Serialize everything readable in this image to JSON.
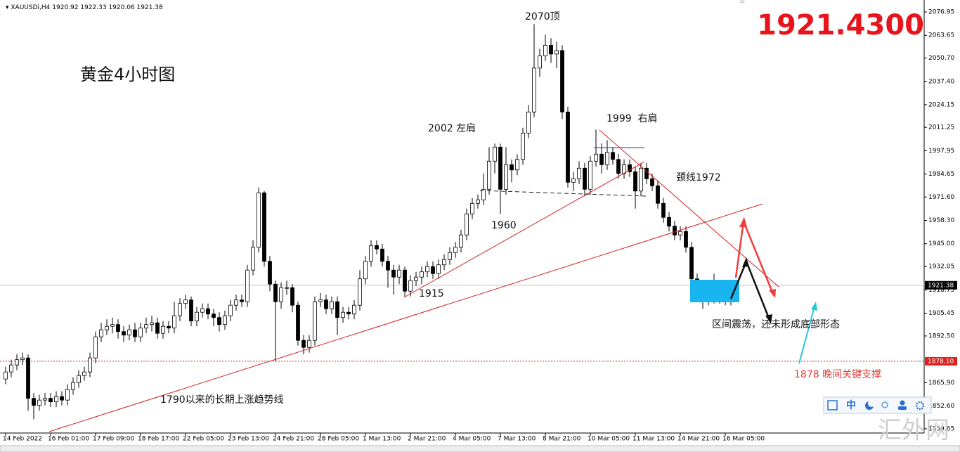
{
  "chart_data": {
    "type": "candlestick",
    "header": {
      "symbol": "XAUUSDi,H4",
      "ohlc": [
        1920.92,
        1922.33,
        1920.06,
        1921.38
      ]
    },
    "title": "黄金4小时图",
    "big_price": "1921.4300",
    "categories": [
      "14 Feb 2022",
      null,
      null,
      null,
      null,
      null,
      null,
      null,
      "16 Feb 01:00",
      null,
      null,
      null,
      null,
      null,
      null,
      null,
      "17 Feb 09:00",
      null,
      null,
      null,
      null,
      null,
      null,
      null,
      "18 Feb 17:00",
      null,
      null,
      null,
      null,
      null,
      null,
      null,
      "22 Feb 05:00",
      null,
      null,
      null,
      null,
      null,
      null,
      null,
      "23 Feb 13:00",
      null,
      null,
      null,
      null,
      null,
      null,
      null,
      "24 Feb 21:00",
      null,
      null,
      null,
      null,
      null,
      null,
      null,
      "28 Feb 05:00",
      null,
      null,
      null,
      null,
      null,
      null,
      null,
      "1 Mar 13:00",
      null,
      null,
      null,
      null,
      null,
      null,
      null,
      "2 Mar 21:00",
      null,
      null,
      null,
      null,
      null,
      null,
      null,
      "4 Mar 05:00",
      null,
      null,
      null,
      null,
      null,
      null,
      null,
      "7 Mar 13:00",
      null,
      null,
      null,
      null,
      null,
      null,
      null,
      "8 Mar 21:00",
      null,
      null,
      null,
      null,
      null,
      null,
      null,
      "10 Mar 05:00",
      null,
      null,
      null,
      null,
      null,
      null,
      null,
      "11 Mar 13:00",
      null,
      null,
      null,
      null,
      null,
      null,
      null,
      "14 Mar 21:00",
      null,
      null,
      null,
      null,
      null,
      null,
      null,
      "16 Mar 05:00",
      null
    ],
    "open": [
      1868,
      1872,
      1876,
      1879,
      1880,
      1857,
      1853,
      1856,
      1857,
      1855,
      1858,
      1856,
      1862,
      1866,
      1870,
      1872,
      1880,
      1892,
      1896,
      1898,
      1899,
      1895,
      1893,
      1896,
      1892,
      1897,
      1899,
      1900,
      1894,
      1898,
      1897,
      1904,
      1911,
      1913,
      1901,
      1906,
      1908,
      1905,
      1903,
      1899,
      1904,
      1910,
      1913,
      1912,
      1930,
      1943,
      1974,
      1935,
      1922,
      1912,
      1920,
      1920,
      1910,
      1890,
      1886,
      1890,
      1912,
      1913,
      1908,
      1912,
      1903,
      1906,
      1905,
      1910,
      1925,
      1935,
      1944,
      1942,
      1935,
      1930,
      1926,
      1930,
      1918,
      1924,
      1926,
      1929,
      1932,
      1928,
      1933,
      1936,
      1940,
      1943,
      1950,
      1962,
      1968,
      1970,
      1976,
      1992,
      2000,
      1976,
      1990,
      1987,
      1993,
      2008,
      2020,
      2045,
      2052,
      2058,
      2053,
      2055,
      2020,
      1980,
      1982,
      1988,
      1976,
      1992,
      1996,
      1990,
      1997,
      1993,
      1985,
      1990,
      1986,
      1975,
      1988,
      1982,
      1978,
      1968,
      1960,
      1955,
      1950,
      1952,
      1943,
      1925,
      1918,
      1913,
      1918,
      1914,
      1918,
      1913
    ],
    "high": [
      1875,
      1879,
      1882,
      1883,
      1882,
      1860,
      1859,
      1860,
      1860,
      1861,
      1861,
      1865,
      1869,
      1873,
      1875,
      1883,
      1895,
      1900,
      1902,
      1903,
      1902,
      1898,
      1899,
      1900,
      1900,
      1903,
      1904,
      1903,
      1901,
      1901,
      1912,
      1914,
      1916,
      1915,
      1909,
      1911,
      1911,
      1908,
      1906,
      1907,
      1913,
      1916,
      1916,
      1933,
      1947,
      1977,
      1975,
      1938,
      1924,
      1923,
      1924,
      1922,
      1912,
      1893,
      1893,
      1915,
      1917,
      1916,
      1915,
      1915,
      1909,
      1909,
      1913,
      1930,
      1938,
      1947,
      1947,
      1945,
      1938,
      1933,
      1933,
      1932,
      1927,
      1929,
      1932,
      1935,
      1935,
      1936,
      1939,
      1943,
      1946,
      1953,
      1965,
      1971,
      1973,
      1985,
      2000,
      2002,
      2002,
      2000,
      1993,
      1996,
      2011,
      2024,
      2070,
      2056,
      2064,
      2062,
      2060,
      2058,
      2023,
      1986,
      1992,
      1991,
      1995,
      2010,
      2002,
      2004,
      2000,
      1996,
      1993,
      1993,
      1989,
      1991,
      1991,
      1985,
      1981,
      1971,
      1963,
      1958,
      1955,
      1955,
      1946,
      1928,
      1921,
      1921,
      1928,
      1921,
      1921,
      1923
    ],
    "low": [
      1865,
      1869,
      1873,
      1876,
      1850,
      1845,
      1850,
      1853,
      1852,
      1852,
      1853,
      1853,
      1859,
      1863,
      1867,
      1869,
      1877,
      1889,
      1893,
      1894,
      1891,
      1889,
      1890,
      1889,
      1889,
      1894,
      1895,
      1891,
      1891,
      1894,
      1894,
      1901,
      1908,
      1898,
      1898,
      1903,
      1902,
      1898,
      1895,
      1896,
      1901,
      1907,
      1909,
      1909,
      1927,
      1940,
      1932,
      1918,
      1878,
      1908,
      1916,
      1906,
      1887,
      1882,
      1883,
      1887,
      1909,
      1905,
      1905,
      1893,
      1900,
      1902,
      1902,
      1907,
      1922,
      1932,
      1939,
      1932,
      1920,
      1916,
      1922,
      1915,
      1915,
      1921,
      1922,
      1926,
      1925,
      1925,
      1930,
      1933,
      1937,
      1940,
      1947,
      1959,
      1965,
      1967,
      1973,
      1985,
      1962,
      1973,
      1980,
      1984,
      1990,
      2005,
      2017,
      2040,
      2049,
      2048,
      2045,
      2016,
      1977,
      1975,
      1979,
      1972,
      1973,
      1989,
      1985,
      1987,
      1990,
      1982,
      1982,
      1983,
      1965,
      1972,
      1979,
      1975,
      1965,
      1957,
      1952,
      1947,
      1947,
      1940,
      1922,
      1915,
      1908,
      1910,
      1911,
      1911,
      1910,
      1910
    ],
    "close": [
      1872,
      1876,
      1879,
      1880,
      1857,
      1853,
      1856,
      1857,
      1855,
      1858,
      1856,
      1862,
      1866,
      1870,
      1872,
      1880,
      1892,
      1896,
      1898,
      1899,
      1895,
      1893,
      1896,
      1892,
      1897,
      1899,
      1900,
      1894,
      1898,
      1897,
      1904,
      1911,
      1913,
      1901,
      1906,
      1908,
      1905,
      1903,
      1899,
      1904,
      1910,
      1913,
      1912,
      1930,
      1943,
      1974,
      1935,
      1922,
      1912,
      1920,
      1920,
      1910,
      1890,
      1886,
      1890,
      1912,
      1913,
      1908,
      1912,
      1903,
      1906,
      1905,
      1910,
      1925,
      1935,
      1944,
      1942,
      1935,
      1930,
      1926,
      1930,
      1918,
      1924,
      1926,
      1929,
      1932,
      1928,
      1933,
      1936,
      1940,
      1943,
      1950,
      1962,
      1968,
      1970,
      1976,
      1992,
      2000,
      1976,
      1990,
      1987,
      1993,
      2008,
      2020,
      2045,
      2052,
      2058,
      2053,
      2055,
      2020,
      1980,
      1982,
      1988,
      1976,
      1992,
      1996,
      1990,
      1997,
      1993,
      1985,
      1990,
      1986,
      1975,
      1988,
      1982,
      1978,
      1968,
      1960,
      1955,
      1950,
      1952,
      1943,
      1925,
      1918,
      1913,
      1918,
      1914,
      1918,
      1913,
      1921.38
    ],
    "ylim": [
      1837.25,
      2081.75
    ],
    "yticks": [
      2076.95,
      2063.65,
      {
        "value": 2050.7,
        "label": "2050.70"
      },
      {
        "value": 2037.4,
        "label": "2037.40"
      },
      2024.15,
      2011.25,
      1997.95,
      1984.65,
      {
        "value": 1971.6,
        "label": "1971.60"
      },
      {
        "value": 1958.3,
        "label": "1958.30"
      },
      {
        "value": 1945,
        "label": "1945.00"
      },
      1932.05,
      1918.75,
      1905.45,
      {
        "value": 1892.5,
        "label": "1892.50"
      },
      {
        "value": 1865.9,
        "label": "1865.90"
      },
      {
        "value": 1852.6,
        "label": "1852.60"
      },
      1839.65
    ],
    "current_price": 1921.38,
    "support_level": {
      "value": 1878.1,
      "label": "1878.10"
    },
    "annotations": [
      "2070顶",
      "2002 左肩",
      "1999  右肩",
      "颈线1972",
      "1960",
      "1915",
      "1790以来的长期上涨趋势线",
      "区间震荡，还未形成底部形态",
      "1878 晚间关键支撑"
    ],
    "toolbar_label": "中",
    "watermark": "汇外网"
  }
}
